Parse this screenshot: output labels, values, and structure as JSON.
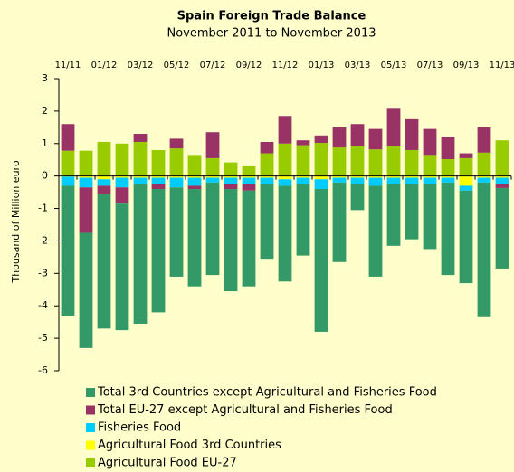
{
  "chart_data": {
    "type": "stacked_bar",
    "title": "Spain Foreign Trade Balance",
    "subtitle": "November 2011 to November 2013",
    "y_label": "Thousand of Million euro",
    "categories": [
      "11/11",
      null,
      "01/12",
      null,
      "03/12",
      null,
      "05/12",
      null,
      "07/12",
      null,
      "09/12",
      null,
      "11/12",
      null,
      "01/13",
      null,
      "03/13",
      null,
      "05/13",
      null,
      "07/13",
      null,
      "09/13",
      null,
      "11/13"
    ],
    "series": [
      {
        "name": "Total 3rd Countries except Agricultural and Fisheries Food",
        "color": "#339966",
        "values": [
          -4.0,
          -3.55,
          -4.15,
          -3.9,
          -4.3,
          -3.8,
          -2.75,
          -3.0,
          -2.85,
          -3.15,
          -2.95,
          -2.3,
          -2.95,
          -2.2,
          -4.4,
          -2.45,
          -0.8,
          -2.8,
          -1.9,
          -1.7,
          -2.0,
          -2.85,
          -2.85,
          -4.15,
          -2.48
        ]
      },
      {
        "name": "Total EU-27 except Agricultural and Fisheries Food",
        "color": "#993366",
        "values": [
          0.82,
          -1.4,
          -0.25,
          -0.5,
          0.25,
          -0.15,
          0.3,
          -0.1,
          0.8,
          -0.15,
          -0.2,
          0.35,
          0.85,
          0.15,
          0.23,
          0.62,
          0.68,
          0.63,
          1.18,
          0.95,
          0.8,
          0.68,
          0.15,
          0.78,
          -0.12
        ]
      },
      {
        "name": "Fisheries Food",
        "color": "#00ccff",
        "values": [
          -0.28,
          -0.3,
          -0.2,
          -0.3,
          -0.2,
          -0.2,
          -0.3,
          -0.25,
          -0.15,
          -0.2,
          -0.2,
          -0.2,
          -0.2,
          -0.2,
          -0.3,
          -0.15,
          -0.2,
          -0.25,
          -0.2,
          -0.2,
          -0.2,
          -0.15,
          -0.15,
          -0.15,
          -0.2
        ]
      },
      {
        "name": "Agricultural Food 3rd Countries",
        "color": "#ffff00",
        "values": [
          -0.02,
          -0.05,
          -0.1,
          -0.05,
          -0.05,
          -0.05,
          -0.05,
          -0.05,
          -0.05,
          -0.05,
          -0.05,
          -0.05,
          -0.1,
          -0.05,
          -0.1,
          -0.05,
          -0.05,
          -0.05,
          -0.05,
          -0.05,
          -0.05,
          -0.05,
          -0.3,
          -0.05,
          -0.05
        ]
      },
      {
        "name": "Agricultural Food EU-27",
        "color": "#99cc00",
        "values": [
          0.78,
          0.78,
          1.05,
          1.0,
          1.05,
          0.8,
          0.85,
          0.65,
          0.55,
          0.42,
          0.3,
          0.7,
          1.0,
          0.95,
          1.02,
          0.88,
          0.92,
          0.82,
          0.92,
          0.8,
          0.65,
          0.52,
          0.55,
          0.72,
          1.1
        ]
      }
    ],
    "ylim": [
      -6,
      3
    ],
    "yticks": [
      3,
      2,
      1,
      0,
      -1,
      -2,
      -3,
      -4,
      -5,
      -6
    ]
  }
}
